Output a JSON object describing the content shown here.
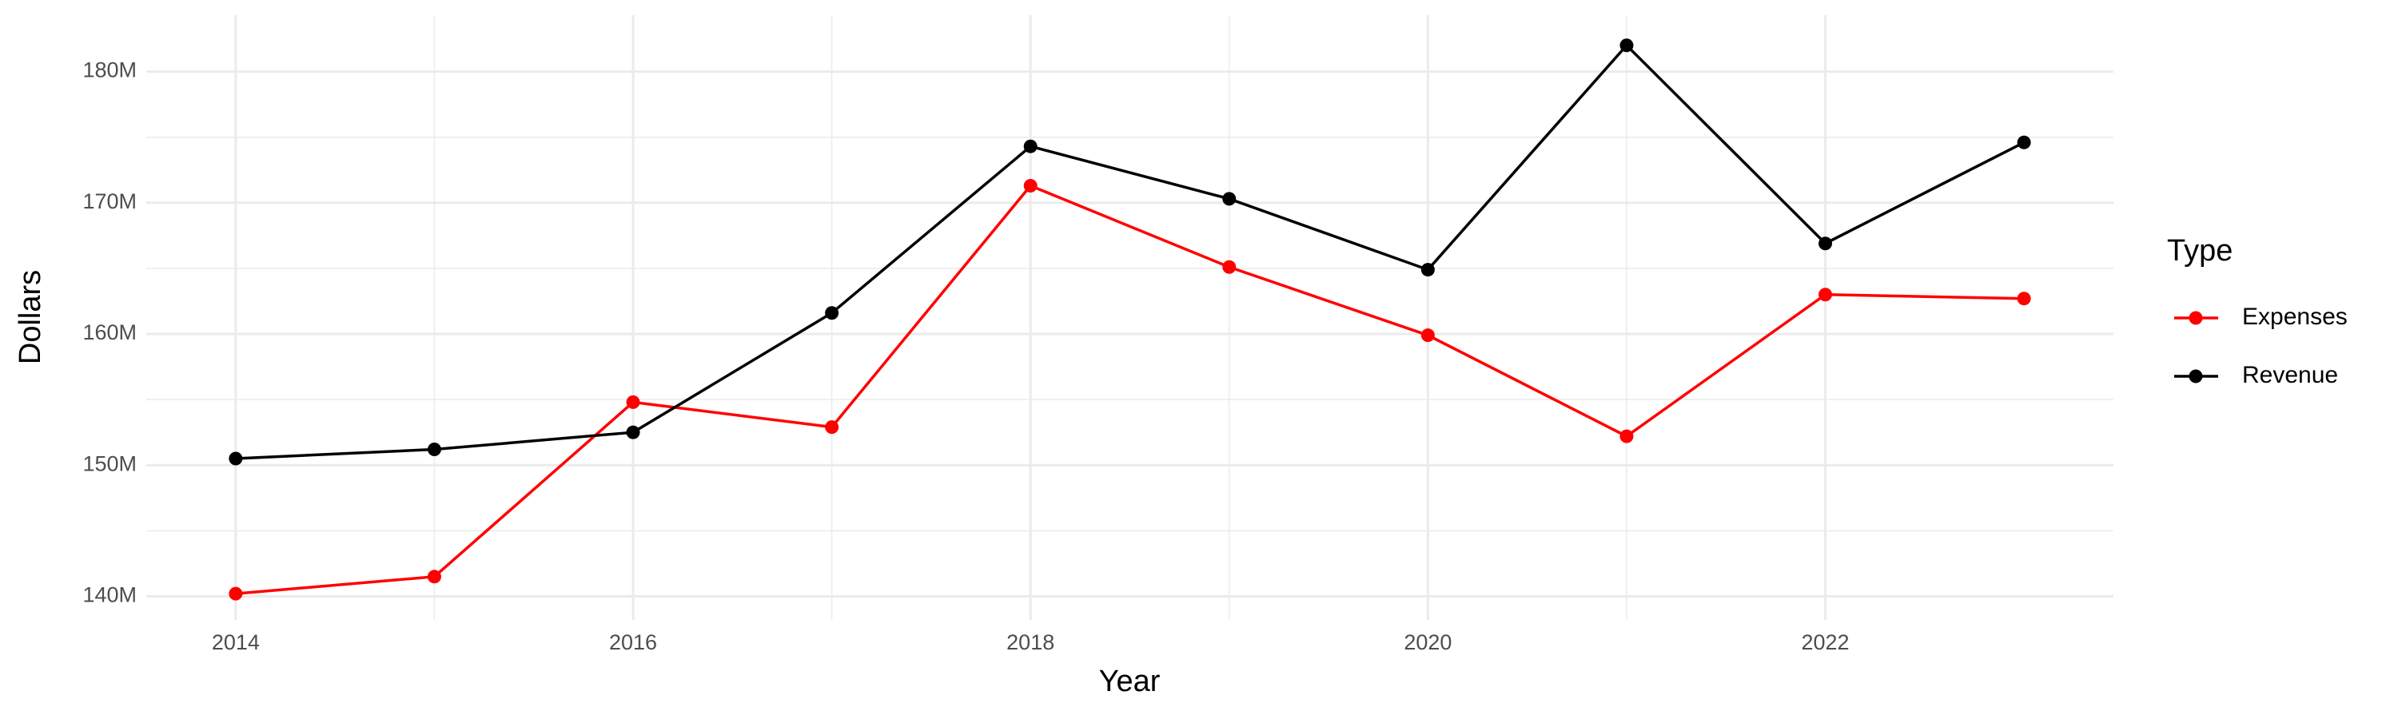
{
  "chart_data": {
    "type": "line",
    "x_label": "Year",
    "y_label": "Dollars",
    "legend_title": "Type",
    "x": [
      2014,
      2015,
      2016,
      2017,
      2018,
      2019,
      2020,
      2021,
      2022,
      2023
    ],
    "series": [
      {
        "name": "Expenses",
        "color": "#ff0000",
        "values": [
          140200000,
          141500000,
          154800000,
          152900000,
          171300000,
          165100000,
          159900000,
          152200000,
          163000000,
          162700000
        ]
      },
      {
        "name": "Revenue",
        "color": "#000000",
        "values": [
          150500000,
          151200000,
          152500000,
          161600000,
          174300000,
          170300000,
          164900000,
          182000000,
          166900000,
          174600000
        ]
      }
    ],
    "xlim": [
      2013.55,
      2023.45
    ],
    "xticks": [
      2014,
      2016,
      2018,
      2020,
      2022
    ],
    "ylim": [
      138200000,
      184300000
    ],
    "yticks": [
      {
        "value": 140000000,
        "label": "140M"
      },
      {
        "value": 150000000,
        "label": "150M"
      },
      {
        "value": 160000000,
        "label": "160M"
      },
      {
        "value": 170000000,
        "label": "170M"
      },
      {
        "value": 180000000,
        "label": "180M"
      }
    ],
    "grid": true,
    "legend_position": "right"
  }
}
